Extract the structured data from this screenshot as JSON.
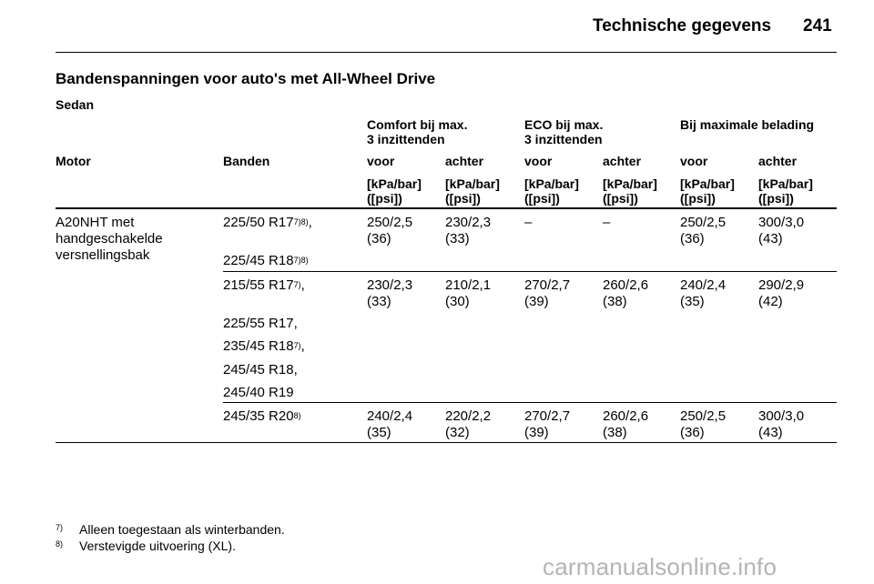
{
  "header": {
    "title": "Technische gegevens",
    "page_number": "241"
  },
  "section": {
    "title": "Bandenspanningen voor auto's met All-Wheel Drive",
    "subtitle": "Sedan"
  },
  "table": {
    "groups": [
      {
        "line1": "Comfort bij max.",
        "line2": "3 inzittenden"
      },
      {
        "line1": "ECO bij max.",
        "line2": "3 inzittenden"
      },
      {
        "line1": "Bij maximale belading",
        "line2": ""
      }
    ],
    "columns": [
      "Motor",
      "Banden",
      "voor",
      "achter",
      "voor",
      "achter",
      "voor",
      "achter"
    ],
    "unit": {
      "line1": "[kPa/bar]",
      "line2": "([psi])"
    },
    "motor": [
      "A20NHT met",
      "handgeschakelde",
      "versnellingsbak"
    ],
    "groups_rows": [
      {
        "tires": [
          {
            "text": "225/50 R17",
            "sup": "7)8)",
            "suffix": ","
          },
          {
            "text": "225/45 R18",
            "sup": "7)8)",
            "suffix": ""
          }
        ],
        "values": [
          {
            "kpa": "250/2,5",
            "psi": "(36)"
          },
          {
            "kpa": "230/2,3",
            "psi": "(33)"
          },
          {
            "kpa": "–",
            "psi": ""
          },
          {
            "kpa": "–",
            "psi": ""
          },
          {
            "kpa": "250/2,5",
            "psi": "(36)"
          },
          {
            "kpa": "300/3,0",
            "psi": "(43)"
          }
        ]
      },
      {
        "tires": [
          {
            "text": "215/55 R17",
            "sup": "7)",
            "suffix": ","
          },
          {
            "text": "225/55 R17,",
            "sup": "",
            "suffix": ""
          },
          {
            "text": "235/45 R18",
            "sup": "7)",
            "suffix": ","
          },
          {
            "text": "245/45 R18,",
            "sup": "",
            "suffix": ""
          },
          {
            "text": "245/40 R19",
            "sup": "",
            "suffix": ""
          }
        ],
        "values": [
          {
            "kpa": "230/2,3",
            "psi": "(33)"
          },
          {
            "kpa": "210/2,1",
            "psi": "(30)"
          },
          {
            "kpa": "270/2,7",
            "psi": "(39)"
          },
          {
            "kpa": "260/2,6",
            "psi": "(38)"
          },
          {
            "kpa": "240/2,4",
            "psi": "(35)"
          },
          {
            "kpa": "290/2,9",
            "psi": "(42)"
          }
        ]
      },
      {
        "tires": [
          {
            "text": "245/35 R20",
            "sup": "8)",
            "suffix": ""
          }
        ],
        "values": [
          {
            "kpa": "240/2,4",
            "psi": "(35)"
          },
          {
            "kpa": "220/2,2",
            "psi": "(32)"
          },
          {
            "kpa": "270/2,7",
            "psi": "(39)"
          },
          {
            "kpa": "260/2,6",
            "psi": "(38)"
          },
          {
            "kpa": "250/2,5",
            "psi": "(36)"
          },
          {
            "kpa": "300/3,0",
            "psi": "(43)"
          }
        ]
      }
    ]
  },
  "footnotes": [
    {
      "mark": "7)",
      "text": "Alleen toegestaan als winterbanden."
    },
    {
      "mark": "8)",
      "text": "Verstevigde uitvoering (XL)."
    }
  ],
  "watermark": "carmanualsonline.info"
}
